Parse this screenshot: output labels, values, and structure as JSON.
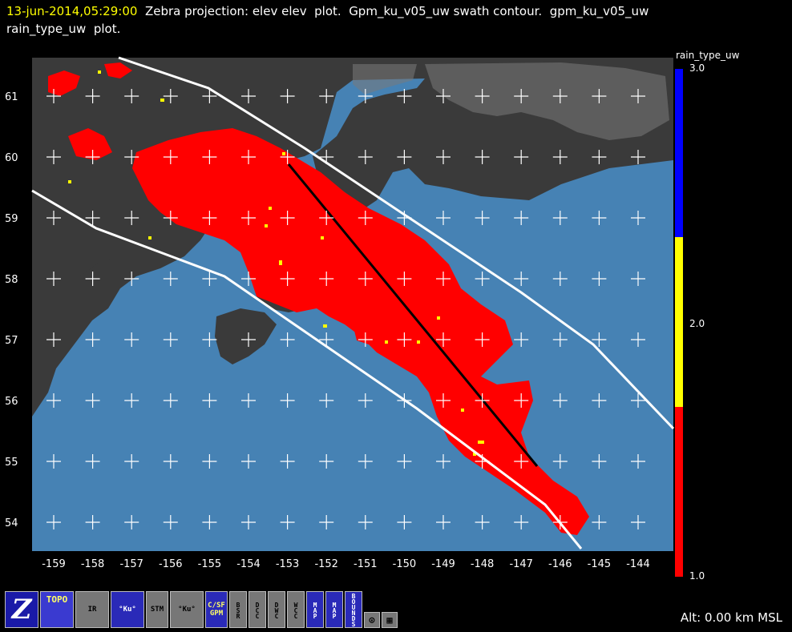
{
  "header": {
    "timestamp": "13-jun-2014,05:29:00",
    "line1_rest": "  Zebra projection: elev elev  plot.  Gpm_ku_v05_uw swath contour.  gpm_ku_v05_uw",
    "line2": "rain_type_uw  plot."
  },
  "map": {
    "y_labels": [
      "61",
      "60",
      "59",
      "58",
      "57",
      "56",
      "55",
      "54"
    ],
    "x_labels": [
      "-159",
      "-158",
      "-157",
      "-156",
      "-155",
      "-154",
      "-153",
      "-152",
      "-151",
      "-150",
      "-149",
      "-148",
      "-147",
      "-146",
      "-145",
      "-144"
    ],
    "ocean_color": "#4682b4",
    "land_color": "#3a3a3a",
    "rain_color": "#ff0000",
    "convective_color": "#ffff00",
    "swath_color": "#ffffff",
    "track_color": "#000000"
  },
  "colorbar": {
    "title": "rain_type_uw",
    "ticks": [
      "3.0",
      "2.0",
      "1.0"
    ],
    "colors": [
      "#0000ff",
      "#ffff00",
      "#ff0000"
    ]
  },
  "toolbar": {
    "z": "Z",
    "topo": "TOPO",
    "ir": "IR",
    "ku": "°Ku°",
    "stm": "STM",
    "ku2": "°Ku°",
    "csf": "C/SF GPM",
    "bsr": "BSR",
    "dcc": "DCC",
    "dwc": "DWC",
    "wcc": "WCC",
    "map": "MAP",
    "map2": "MAP",
    "bounds": "BOUNDS",
    "circle": "⊙",
    "grid": "▦"
  },
  "status": {
    "altitude": "Alt: 0.00 km MSL"
  }
}
